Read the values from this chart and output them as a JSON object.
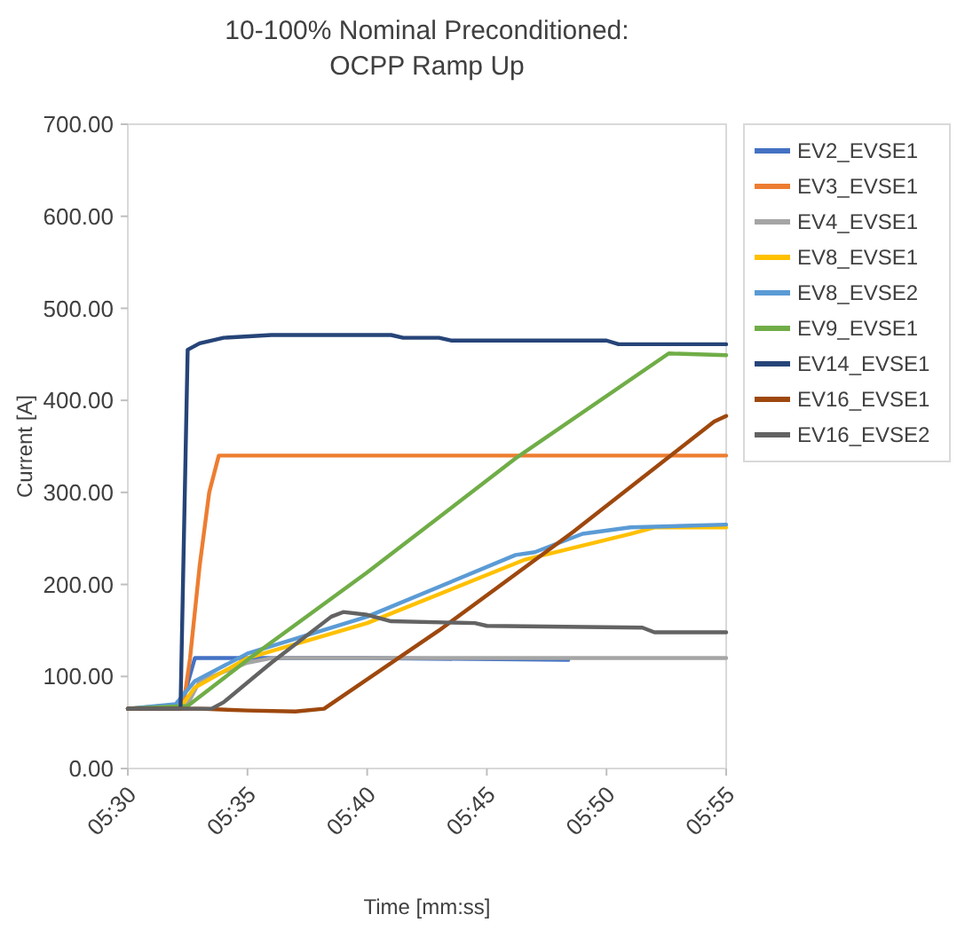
{
  "chart_data": {
    "type": "line",
    "title": "10-100% Nominal Preconditioned:\nOCPP Ramp Up",
    "xlabel": "Time [mm:ss]",
    "ylabel": "Current [A]",
    "legend": "right",
    "xlim": [
      330,
      355
    ],
    "xticks": [
      {
        "value": 330,
        "label": "05:30"
      },
      {
        "value": 335,
        "label": "05:35"
      },
      {
        "value": 340,
        "label": "05:40"
      },
      {
        "value": 345,
        "label": "05:45"
      },
      {
        "value": 350,
        "label": "05:50"
      },
      {
        "value": 355,
        "label": "05:55"
      }
    ],
    "ylim": [
      0,
      700
    ],
    "yticks": [
      {
        "value": 0,
        "label": "0.00"
      },
      {
        "value": 100,
        "label": "100.00"
      },
      {
        "value": 200,
        "label": "200.00"
      },
      {
        "value": 300,
        "label": "300.00"
      },
      {
        "value": 400,
        "label": "400.00"
      },
      {
        "value": 500,
        "label": "500.00"
      },
      {
        "value": 600,
        "label": "600.00"
      },
      {
        "value": 700,
        "label": "700.00"
      }
    ],
    "series": [
      {
        "name": "EV2_EVSE1",
        "color": "#4472c4",
        "x": [
          330,
          332.2,
          332.8,
          340,
          348.4
        ],
        "values": [
          65,
          65,
          120,
          120,
          118
        ]
      },
      {
        "name": "EV3_EVSE1",
        "color": "#ed7d31",
        "x": [
          330,
          332.3,
          332.6,
          333,
          333.4,
          333.8,
          355
        ],
        "values": [
          65,
          65,
          120,
          220,
          300,
          340,
          340
        ]
      },
      {
        "name": "EV4_EVSE1",
        "color": "#a5a5a5",
        "x": [
          330,
          332.5,
          333,
          335,
          336,
          355
        ],
        "values": [
          65,
          70,
          95,
          115,
          120,
          120
        ]
      },
      {
        "name": "EV8_EVSE1",
        "color": "#ffc000",
        "x": [
          330,
          332.3,
          332.8,
          335,
          340,
          346.6,
          351,
          352,
          355
        ],
        "values": [
          65,
          70,
          88,
          120,
          158,
          227,
          255,
          262,
          262
        ]
      },
      {
        "name": "EV8_EVSE2",
        "color": "#5b9bd5",
        "x": [
          330,
          332,
          332.8,
          335,
          340,
          346.2,
          347,
          349,
          351,
          355
        ],
        "values": [
          65,
          70,
          95,
          125,
          165,
          232,
          235,
          255,
          262,
          265
        ]
      },
      {
        "name": "EV9_EVSE1",
        "color": "#70ad47",
        "x": [
          330,
          332.5,
          335.2,
          340,
          346.2,
          352.6,
          355
        ],
        "values": [
          65,
          68,
          122,
          213,
          337,
          451,
          449
        ]
      },
      {
        "name": "EV14_EVSE1",
        "color": "#264478",
        "x": [
          330,
          332.2,
          332.5,
          333,
          334,
          336,
          341,
          341.5,
          343,
          343.5,
          350,
          350.5,
          355
        ],
        "values": [
          65,
          65,
          455,
          462,
          468,
          471,
          471,
          468,
          468,
          465,
          465,
          461,
          461
        ]
      },
      {
        "name": "EV16_EVSE1",
        "color": "#9e480e",
        "x": [
          330,
          333,
          335,
          337,
          338.2,
          343,
          348.6,
          354.5,
          355
        ],
        "values": [
          65,
          65,
          63,
          62,
          65,
          150,
          257,
          377,
          383
        ]
      },
      {
        "name": "EV16_EVSE2",
        "color": "#636363",
        "x": [
          330,
          333.5,
          334,
          336,
          338.5,
          339,
          340,
          341,
          344.5,
          345,
          351.5,
          352,
          355
        ],
        "values": [
          65,
          65,
          72,
          115,
          165,
          170,
          167,
          160,
          158,
          155,
          153,
          148,
          148
        ]
      }
    ]
  }
}
